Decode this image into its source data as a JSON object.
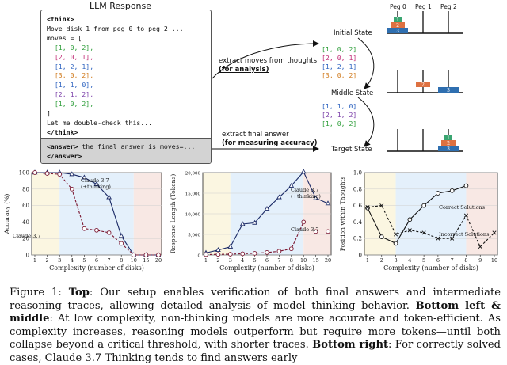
{
  "llm": {
    "title": "LLM Response",
    "lines": [
      {
        "text": "<think>",
        "color": "#111111",
        "bold": true
      },
      {
        "text": "Move disk 1 from peg 0 to peg 2 ...",
        "color": "#111111",
        "bold": false
      },
      {
        "text": "moves = [",
        "color": "#111111",
        "bold": false
      },
      {
        "text": "  [1, 0, 2],",
        "color": "#2e9e3a",
        "bold": false
      },
      {
        "text": "  [2, 0, 1],",
        "color": "#c12d76",
        "bold": false
      },
      {
        "text": "  [1, 2, 1],",
        "color": "#2f64c0",
        "bold": false
      },
      {
        "text": "  [3, 0, 2],",
        "color": "#d07a1c",
        "bold": false
      },
      {
        "text": "  [1, 1, 0],",
        "color": "#2f64c0",
        "bold": false
      },
      {
        "text": "  [2, 1, 2],",
        "color": "#7a3ea8",
        "bold": false
      },
      {
        "text": "  [1, 0, 2],",
        "color": "#2e9e3a",
        "bold": false
      },
      {
        "text": "]",
        "color": "#111111",
        "bold": false
      },
      {
        "text": "Let me double-check this...",
        "color": "#111111",
        "bold": false
      },
      {
        "text": "</think>",
        "color": "#111111",
        "bold": true
      }
    ],
    "answer_open": "<answer>",
    "answer_text": " the final answer is moves=...",
    "answer_close": "</answer>"
  },
  "annotations": {
    "moves_line1": "extract moves  from thoughts",
    "moves_line2": "(for analysis)",
    "final_line1": "extract final answer",
    "final_line2": "(for measuring accuracy)"
  },
  "states": {
    "initial": "Initial State",
    "middle": "Middle State",
    "target": "Target State",
    "pegs": [
      "Peg 0",
      "Peg 1",
      "Peg 2"
    ],
    "disk_labels": [
      "1",
      "2",
      "3"
    ],
    "disk_colors": {
      "1": "#3aa571",
      "2": "#de7141",
      "3": "#2f6fb0"
    }
  },
  "moves_groups": {
    "first": [
      {
        "text": "[1, 0, 2]",
        "color": "#2e9e3a"
      },
      {
        "text": "[2, 0, 1]",
        "color": "#c12d76"
      },
      {
        "text": "[1, 2, 1]",
        "color": "#2f64c0"
      },
      {
        "text": "[3, 0, 2]",
        "color": "#d07a1c"
      }
    ],
    "second": [
      {
        "text": "[1, 1, 0]",
        "color": "#2f64c0"
      },
      {
        "text": "[2, 1, 2]",
        "color": "#7a3ea8"
      },
      {
        "text": "[1, 0, 2]",
        "color": "#2e9e3a"
      }
    ]
  },
  "chart_data": [
    {
      "type": "line",
      "xlabel": "Complexity (number of disks)",
      "ylabel": "Accuracy (%)",
      "x_ticks": [
        1,
        2,
        3,
        4,
        5,
        6,
        7,
        8,
        10,
        15,
        20
      ],
      "ylim": [
        0,
        100
      ],
      "y_ticks": [
        0,
        20,
        40,
        60,
        80,
        100
      ],
      "regions": [
        {
          "from": 0.5,
          "to": 3,
          "color": "#fbf6e1"
        },
        {
          "from": 3,
          "to": 10,
          "color": "#e4f0fb"
        },
        {
          "from": 10,
          "to": 20.5,
          "color": "#f8e8e4"
        }
      ],
      "series": [
        {
          "name": "Claude 3.7 (+thinking)",
          "style": "solid",
          "marker": "triangle",
          "x": [
            1,
            2,
            3,
            4,
            5,
            6,
            7,
            8,
            10,
            15,
            20
          ],
          "y": [
            100,
            100,
            100,
            98,
            94,
            86,
            70,
            23,
            0,
            0,
            0
          ]
        },
        {
          "name": "Claude 3.7",
          "style": "dashed",
          "marker": "circle",
          "x": [
            1,
            2,
            3,
            4,
            5,
            6,
            7,
            8,
            10,
            15,
            20
          ],
          "y": [
            100,
            99,
            98,
            80,
            32,
            30,
            27,
            14,
            0,
            0,
            0
          ]
        }
      ],
      "annotations": [
        "Claude 3.7",
        "(+thinking)",
        "Claude 3.7"
      ]
    },
    {
      "type": "line",
      "xlabel": "Complexity (number of disks)",
      "ylabel": "Response Length (Tokens)",
      "x_ticks": [
        1,
        2,
        3,
        4,
        5,
        6,
        7,
        8,
        10,
        15,
        20
      ],
      "ylim": [
        0,
        20000
      ],
      "y_ticks": [
        0,
        5000,
        10000,
        15000,
        20000
      ],
      "y_tick_labels": [
        "0",
        "5,000",
        "10,000",
        "15,000",
        "20,000"
      ],
      "regions": [
        {
          "from": 0.5,
          "to": 3,
          "color": "#fbf6e1"
        },
        {
          "from": 3,
          "to": 10,
          "color": "#e4f0fb"
        },
        {
          "from": 10,
          "to": 20.5,
          "color": "#f8e8e4"
        }
      ],
      "series": [
        {
          "name": "Claude 3.7 (+thinking)",
          "style": "solid",
          "marker": "triangle",
          "x": [
            1,
            2,
            3,
            4,
            5,
            6,
            7,
            8,
            10,
            15,
            20
          ],
          "y": [
            500,
            1200,
            2000,
            7500,
            7800,
            11200,
            14000,
            16800,
            20200,
            13800,
            12500
          ]
        },
        {
          "name": "Claude 3.7",
          "style": "dashed",
          "marker": "circle",
          "x": [
            1,
            2,
            3,
            4,
            5,
            6,
            7,
            8,
            10,
            15,
            20
          ],
          "y": [
            100,
            150,
            200,
            300,
            400,
            600,
            900,
            1500,
            8000,
            null,
            5700
          ]
        },
        {
          "name": "",
          "style": "none",
          "marker": "circle",
          "x": [
            15
          ],
          "y": [
            5700
          ]
        }
      ],
      "annotations": [
        "Claude 3.7",
        "(+thinking)",
        "Claude 3.7"
      ]
    },
    {
      "type": "line",
      "xlabel": "Complexity (number of disks)",
      "ylabel": "Position within Thoughts",
      "x_ticks": [
        1,
        2,
        3,
        4,
        5,
        6,
        7,
        8,
        9,
        10
      ],
      "ylim": [
        0,
        1
      ],
      "y_ticks": [
        0,
        0.2,
        0.4,
        0.6,
        0.8,
        1.0
      ],
      "y_tick_labels": [
        "0",
        "0.2",
        "0.4",
        "0.6",
        "0.8",
        "1.0"
      ],
      "regions": [
        {
          "from": 0.5,
          "to": 3,
          "color": "#fbf6e1"
        },
        {
          "from": 3,
          "to": 8,
          "color": "#e4f0fb"
        },
        {
          "from": 8,
          "to": 10.5,
          "color": "#f8e8e4"
        }
      ],
      "series": [
        {
          "name": "Correct Solutions",
          "style": "solid",
          "marker": "circle",
          "x": [
            1,
            2,
            3,
            4,
            5,
            6,
            7,
            8
          ],
          "y": [
            0.57,
            0.22,
            0.14,
            0.43,
            0.6,
            0.75,
            0.78,
            0.84
          ]
        },
        {
          "name": "Incorrect Solutions",
          "style": "dashed",
          "marker": "x",
          "x": [
            1,
            2,
            3,
            4,
            5,
            6,
            7,
            8,
            9,
            10
          ],
          "y": [
            0.58,
            0.6,
            0.25,
            0.3,
            0.27,
            0.2,
            0.2,
            0.48,
            0.1,
            0.27
          ]
        }
      ],
      "annotations": [
        "Correct Solutions",
        "Incorrect Solutions"
      ]
    }
  ],
  "caption": {
    "fig_label": "Figure 1:",
    "top_label": "Top",
    "top_text": ": Our setup enables verification of both final answers and intermediate reasoning traces, allowing detailed analysis of model thinking behavior.",
    "bottom_lm_label": "Bottom left & middle",
    "bottom_lm_text": ": At low complexity, non-thinking models are more accurate and token-efficient. As complexity increases, reasoning models outperform but require more tokens—until both collapse beyond a critical threshold, with shorter traces.",
    "bottom_r_label": "Bottom right",
    "bottom_r_text": ": For correctly solved cases, Claude 3.7 Thinking tends to find answers early"
  }
}
